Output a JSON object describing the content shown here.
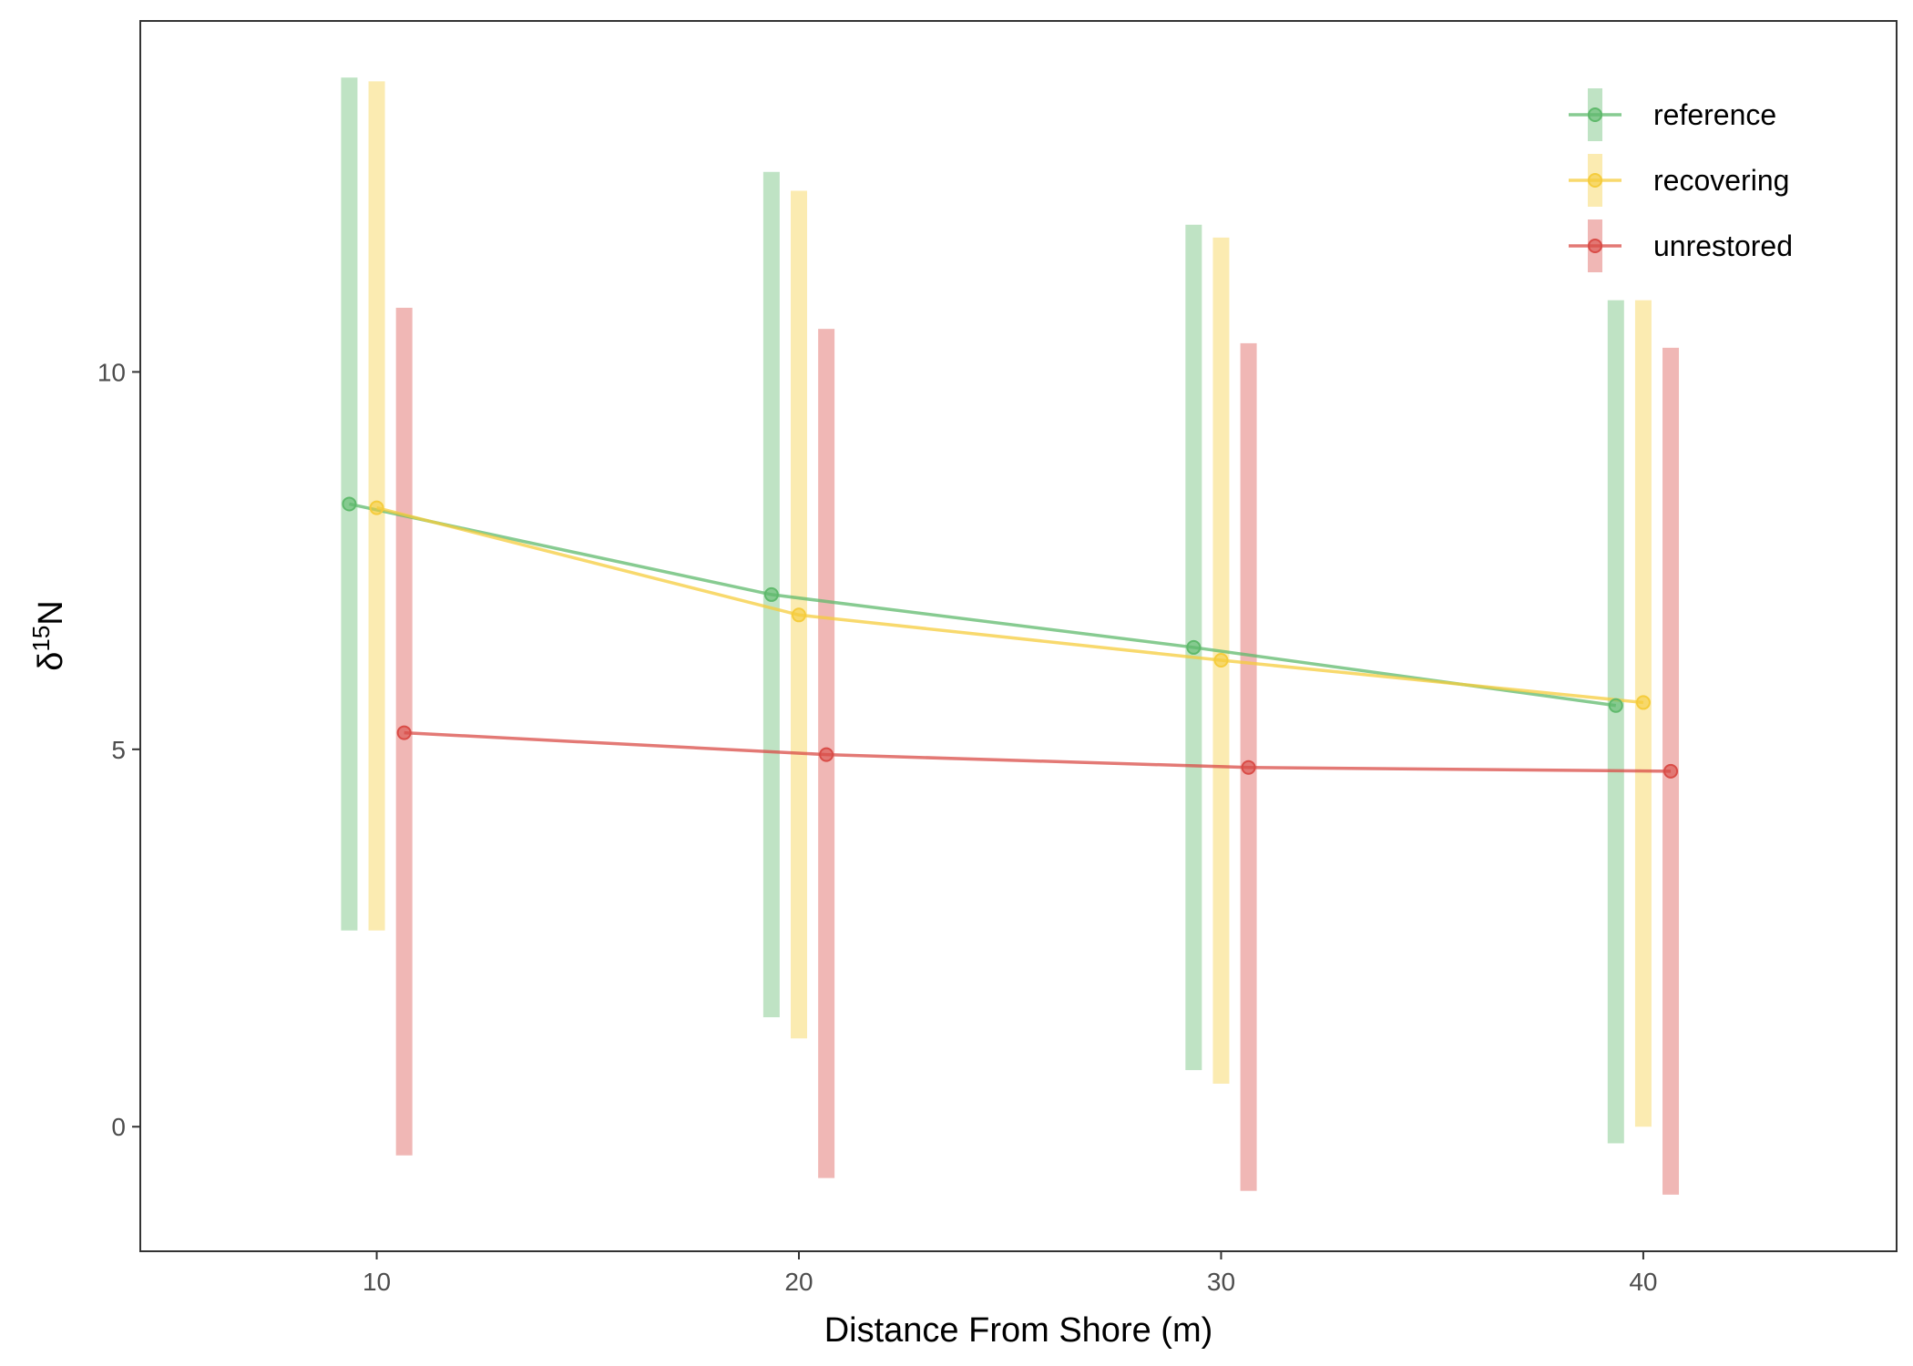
{
  "chart_data": {
    "type": "line",
    "xlabel": "Distance From Shore (m)",
    "ylabel_symbol": "δ",
    "ylabel_superscript": "15",
    "ylabel_element": "N",
    "xlim": [
      4.4,
      46
    ],
    "ylim": [
      -1.65,
      14.65
    ],
    "x_ticks": [
      10,
      20,
      30,
      40
    ],
    "y_ticks": [
      0,
      5,
      10
    ],
    "legend_position": "top-right",
    "grid": false,
    "series": [
      {
        "name": "reference",
        "color": "#5fb96c",
        "x": [
          10,
          20,
          30,
          40
        ],
        "y": [
          8.25,
          7.05,
          6.35,
          5.58
        ],
        "ymin": [
          2.6,
          1.45,
          0.75,
          -0.22
        ],
        "ymax": [
          13.9,
          12.65,
          11.95,
          10.95
        ]
      },
      {
        "name": "recovering",
        "color": "#f5cc3c",
        "x": [
          10,
          20,
          30,
          40
        ],
        "y": [
          8.2,
          6.78,
          6.18,
          5.62
        ],
        "ymin": [
          2.6,
          1.17,
          0.57,
          0.0
        ],
        "ymax": [
          13.85,
          12.4,
          11.78,
          10.95
        ]
      },
      {
        "name": "unrestored",
        "color": "#d94c47",
        "x": [
          10,
          20,
          30,
          40
        ],
        "y": [
          5.22,
          4.93,
          4.76,
          4.71
        ],
        "ymin": [
          -0.38,
          -0.68,
          -0.85,
          -0.9
        ],
        "ymax": [
          10.85,
          10.57,
          10.38,
          10.32
        ]
      }
    ]
  }
}
